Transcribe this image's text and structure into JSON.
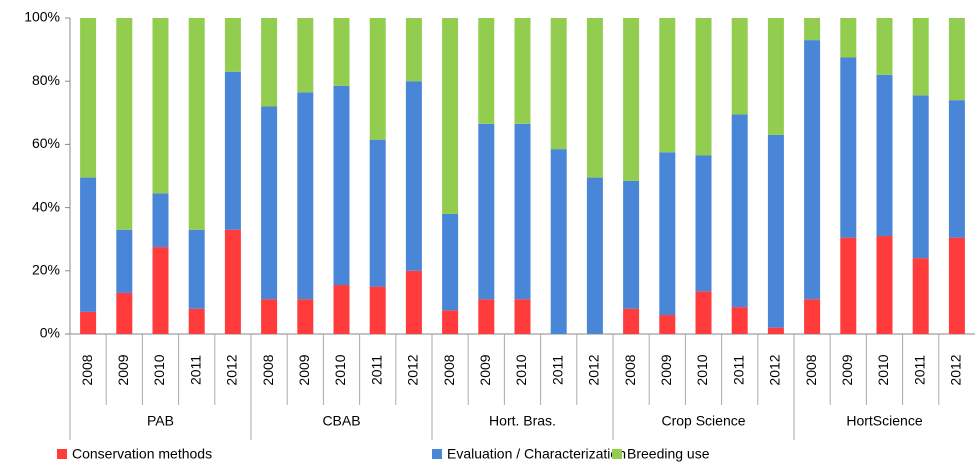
{
  "chart_data": {
    "type": "stacked_bar_100",
    "groups": [
      {
        "name": "PAB",
        "categories": [
          "2008",
          "2009",
          "2010",
          "2011",
          "2012"
        ]
      },
      {
        "name": "CBAB",
        "categories": [
          "2008",
          "2009",
          "2010",
          "2011",
          "2012"
        ]
      },
      {
        "name": "Hort. Bras.",
        "categories": [
          "2008",
          "2009",
          "2010",
          "2011",
          "2012"
        ]
      },
      {
        "name": "Crop Science",
        "categories": [
          "2008",
          "2009",
          "2010",
          "2011",
          "2012"
        ]
      },
      {
        "name": "HortScience",
        "categories": [
          "2008",
          "2009",
          "2010",
          "2011",
          "2012"
        ]
      }
    ],
    "series": [
      {
        "name": "Conservation methods",
        "color": "#ff3b3b",
        "values": [
          7,
          13,
          27.5,
          8,
          33,
          11,
          11,
          15.5,
          15,
          20,
          7.5,
          11,
          11,
          0,
          0,
          8,
          6,
          13.5,
          8.5,
          2,
          11,
          30.5,
          31,
          24,
          30.5
        ]
      },
      {
        "name": "Evaluation / Characterization",
        "color": "#4a86d8",
        "values": [
          42.5,
          20,
          17,
          25,
          50,
          61,
          65.5,
          63,
          46.5,
          60,
          30.5,
          55.5,
          55.5,
          58.5,
          49.5,
          40.5,
          51.5,
          43,
          61,
          61,
          82,
          57,
          51,
          51.5,
          43.5
        ]
      },
      {
        "name": "Breeding use",
        "color": "#92cd50",
        "values": [
          50.5,
          67,
          55.5,
          67,
          17,
          28,
          23.5,
          21.5,
          38.5,
          20,
          62,
          33.5,
          33.5,
          41.5,
          50.5,
          51.5,
          42.5,
          43.5,
          30.5,
          37,
          7,
          12.5,
          18,
          24.5,
          26
        ]
      }
    ],
    "ylim": [
      0,
      100
    ],
    "yticks": [
      {
        "value": 0,
        "label": "0%"
      },
      {
        "value": 20,
        "label": "20%"
      },
      {
        "value": 40,
        "label": "40%"
      },
      {
        "value": 60,
        "label": "60%"
      },
      {
        "value": 80,
        "label": "80%"
      },
      {
        "value": 100,
        "label": "100%"
      }
    ]
  }
}
